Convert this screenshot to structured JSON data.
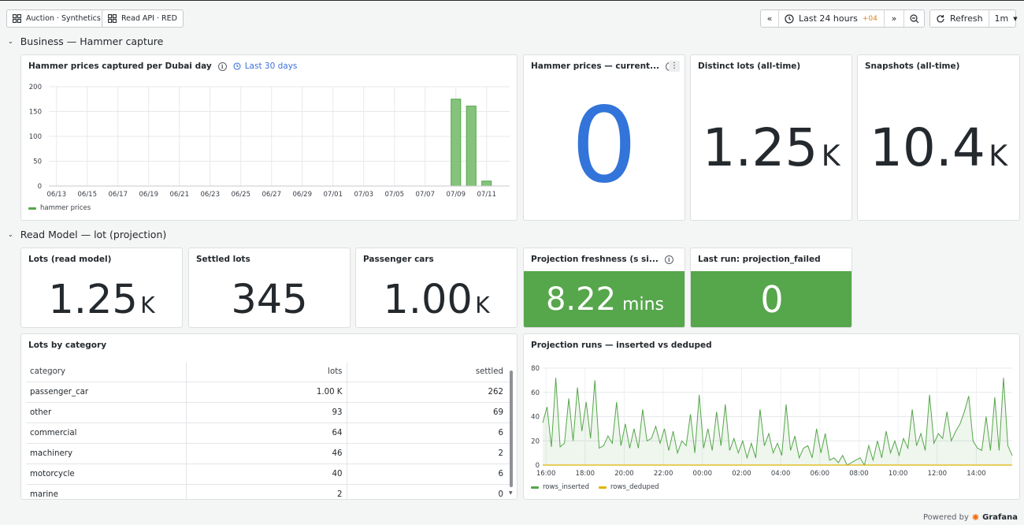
{
  "toolbar": {
    "links": [
      "Auction · Synthetics",
      "Read API · RED"
    ],
    "time_range": "Last 24 hours",
    "timezone_offset": "+04",
    "refresh_label": "Refresh",
    "refresh_interval": "1m"
  },
  "sections": {
    "business": "Business — Hammer capture",
    "read_model": "Read Model — lot (projection)"
  },
  "panels": {
    "hammer_per_day": {
      "title": "Hammer prices captured per Dubai day",
      "time_override": "Last 30 days",
      "legend": "hammer prices"
    },
    "hammer_current": {
      "title": "Hammer prices — current...",
      "value": "0"
    },
    "distinct_lots": {
      "title": "Distinct lots (all-time)",
      "value": "1.25",
      "unit": "K"
    },
    "snapshots": {
      "title": "Snapshots (all-time)",
      "value": "10.4",
      "unit": "K"
    },
    "lots_read_model": {
      "title": "Lots (read model)",
      "value": "1.25",
      "unit": "K"
    },
    "settled_lots": {
      "title": "Settled lots",
      "value": "345"
    },
    "passenger_cars": {
      "title": "Passenger cars",
      "value": "1.00",
      "unit": "K"
    },
    "projection_freshness": {
      "title": "Projection freshness (s si...",
      "value": "8.22",
      "unit": "mins"
    },
    "last_run": {
      "title": "Last run: projection_failed",
      "value": "0"
    },
    "lots_by_category": {
      "title": "Lots by category",
      "columns": [
        "category",
        "lots",
        "settled"
      ],
      "rows": [
        [
          "passenger_car",
          "1.00 K",
          "262"
        ],
        [
          "other",
          "93",
          "69"
        ],
        [
          "commercial",
          "64",
          "6"
        ],
        [
          "machinery",
          "46",
          "2"
        ],
        [
          "motorcycle",
          "40",
          "6"
        ],
        [
          "marine",
          "2",
          "0"
        ]
      ]
    },
    "projection_runs": {
      "title": "Projection runs — inserted vs deduped"
    }
  },
  "colors": {
    "green": "#56a64b",
    "bar_fill": "#85c37c",
    "bar_stroke": "#56a64b",
    "blue": "#3274d9",
    "yellow": "#e0b400"
  },
  "chart_data": [
    {
      "type": "bar",
      "categories": [
        "06/13",
        "06/14",
        "06/15",
        "06/16",
        "06/17",
        "06/18",
        "06/19",
        "06/20",
        "06/21",
        "06/22",
        "06/23",
        "06/24",
        "06/25",
        "06/26",
        "06/27",
        "06/28",
        "06/29",
        "06/30",
        "07/01",
        "07/02",
        "07/03",
        "07/04",
        "07/05",
        "07/06",
        "07/07",
        "07/08",
        "07/09",
        "07/10",
        "07/11",
        "07/12"
      ],
      "tick_labels": [
        "06/13",
        "06/15",
        "06/17",
        "06/19",
        "06/21",
        "06/23",
        "06/25",
        "06/27",
        "06/29",
        "07/01",
        "07/03",
        "07/05",
        "07/07",
        "07/09",
        "07/11"
      ],
      "series": [
        {
          "name": "hammer prices",
          "values": [
            0,
            0,
            0,
            0,
            0,
            0,
            0,
            0,
            0,
            0,
            0,
            0,
            0,
            0,
            0,
            0,
            0,
            0,
            0,
            0,
            0,
            0,
            0,
            0,
            0,
            0,
            175,
            161,
            10,
            0
          ]
        }
      ],
      "ylim": [
        0,
        200
      ],
      "yticks": [
        0,
        50,
        100,
        150,
        200
      ],
      "grid": true,
      "legend": "bottom-left"
    },
    {
      "type": "area",
      "xlim": [
        "15:50",
        "15:50 (next day)"
      ],
      "xticks": [
        "16:00",
        "18:00",
        "20:00",
        "22:00",
        "00:00",
        "02:00",
        "04:00",
        "06:00",
        "08:00",
        "10:00",
        "12:00",
        "14:00"
      ],
      "ylim": [
        0,
        80
      ],
      "yticks": [
        0,
        20,
        40,
        60,
        80
      ],
      "grid": true,
      "legend": "bottom-left",
      "series": [
        {
          "name": "rows_inserted",
          "values": [
            35,
            48,
            15,
            72,
            15,
            18,
            55,
            20,
            64,
            28,
            52,
            22,
            70,
            14,
            16,
            24,
            18,
            52,
            16,
            34,
            14,
            30,
            14,
            46,
            20,
            22,
            32,
            18,
            30,
            12,
            28,
            10,
            20,
            16,
            42,
            10,
            58,
            14,
            30,
            12,
            44,
            16,
            50,
            12,
            22,
            10,
            20,
            6,
            18,
            6,
            46,
            16,
            26,
            10,
            18,
            8,
            50,
            12,
            24,
            6,
            14,
            16,
            6,
            30,
            10,
            26,
            4,
            6,
            2,
            8,
            0,
            2,
            4,
            6,
            0,
            16,
            4,
            20,
            6,
            28,
            10,
            20,
            8,
            22,
            14,
            46,
            16,
            26,
            12,
            58,
            18,
            26,
            22,
            44,
            20,
            28,
            34,
            44,
            57,
            20,
            14,
            12,
            40,
            12,
            56,
            12,
            72,
            16,
            8
          ]
        },
        {
          "name": "rows_deduped",
          "values": [
            0,
            0,
            0,
            0,
            0,
            0,
            0,
            0,
            0,
            0,
            0,
            0,
            0,
            0,
            0,
            0,
            0,
            0,
            0,
            0,
            0,
            0,
            0,
            0,
            0,
            0,
            0,
            0,
            0,
            0,
            0,
            0,
            0,
            0,
            0,
            0,
            0,
            0,
            0,
            0,
            0,
            0,
            0,
            0,
            0,
            0,
            0,
            0,
            0,
            0,
            0,
            0,
            0,
            0,
            0,
            0,
            0,
            0,
            0,
            0,
            0,
            0,
            0,
            0,
            0,
            0,
            0,
            0,
            0,
            0,
            0,
            0,
            0,
            0,
            0,
            0,
            0,
            0,
            0,
            0,
            0,
            0,
            0,
            0,
            0,
            0,
            0,
            0,
            0,
            0,
            0,
            0,
            0,
            0,
            0,
            0,
            0,
            0,
            0,
            0,
            0,
            0,
            0,
            0,
            0,
            0,
            0,
            0,
            0
          ]
        }
      ]
    }
  ]
}
